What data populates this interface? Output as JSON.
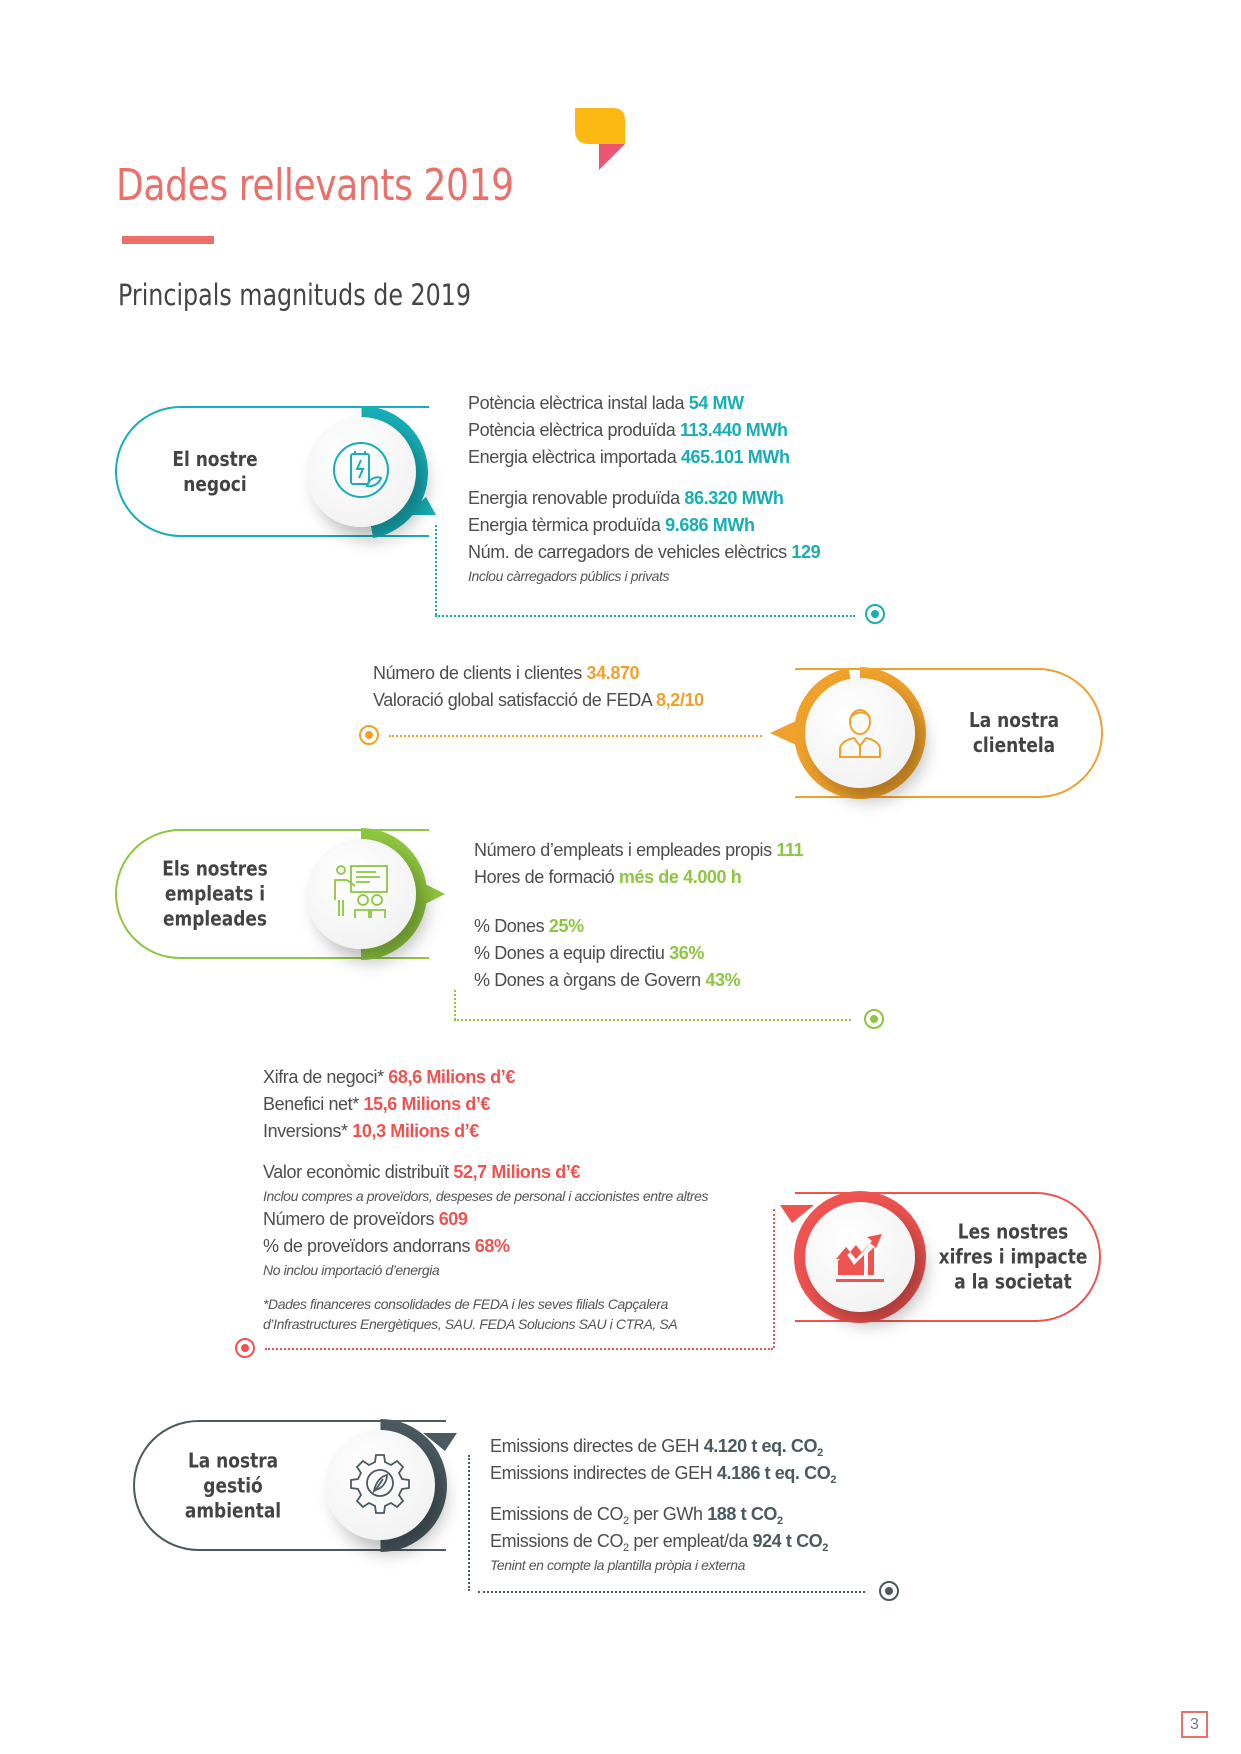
{
  "title": "Dades rellevants 2019",
  "subtitle": "Principals magnituds de 2019",
  "page_number": "3",
  "colors": {
    "title": "#e8716b",
    "negoci": "#17aeb6",
    "clientela": "#f0a12b",
    "empleats": "#8dc63f",
    "xifres": "#ee5350",
    "ambiental": "#4b5a61",
    "logo_yellow": "#fbb813",
    "logo_pink": "#ec5670"
  },
  "sections": [
    {
      "id": "negoci",
      "label": "El nostre\nnegoci",
      "icon": "battery-leaf-icon",
      "lines": [
        {
          "text": "Potència elèctrica instal lada ",
          "value": "54 MW"
        },
        {
          "text": "Potència elèctrica produïda ",
          "value": "113.440 MWh"
        },
        {
          "text": "Energia elèctrica importada ",
          "value": "465.101 MWh"
        },
        {
          "text": "Energia renovable produïda ",
          "value": "86.320 MWh",
          "gap": true
        },
        {
          "text": "Energia tèrmica produïda ",
          "value": "9.686 MWh"
        },
        {
          "text": "Núm. de carregadors de vehicles elèctrics ",
          "value": "129"
        },
        {
          "note": "Inclou càrregadors públics i privats"
        }
      ]
    },
    {
      "id": "clientela",
      "label": "La nostra\nclientela",
      "icon": "person-icon",
      "lines": [
        {
          "text": "Número de clients i clientes ",
          "value": "34.870"
        },
        {
          "text": "Valoració global satisfacció de FEDA ",
          "value": "8,2/10"
        }
      ]
    },
    {
      "id": "empleats",
      "label": "Els nostres\nempleats i\nempleades",
      "icon": "training-presentation-icon",
      "lines": [
        {
          "text": "Número d’empleats i empleades propis ",
          "value": "111"
        },
        {
          "text": "Hores de formació ",
          "value": "més de 4.000 h"
        },
        {
          "text": "% Dones ",
          "value": "25%",
          "gap": true,
          "big": true
        },
        {
          "text": "% Dones a equip directiu ",
          "value": "36%"
        },
        {
          "text": "% Dones a òrgans de Govern ",
          "value": "43%"
        }
      ]
    },
    {
      "id": "xifres",
      "label": "Les nostres\nxifres i impacte\na la societat",
      "icon": "growth-chart-icon",
      "lines": [
        {
          "text": "Xifra de negoci* ",
          "value": "68,6 Milions d’€"
        },
        {
          "text": "Benefici net* ",
          "value": "15,6 Milions d’€"
        },
        {
          "text": "Inversions* ",
          "value": "10,3 Milions d’€"
        },
        {
          "text": "Valor econòmic distribuït ",
          "value": "52,7 Milions d’€",
          "gap": true
        },
        {
          "note": "Inclou compres a proveïdors, despeses de personal i accionistes entre altres"
        },
        {
          "text": "Número de proveïdors ",
          "value": "609"
        },
        {
          "text": "% de proveïdors andorrans ",
          "value": "68%"
        },
        {
          "note": "No inclou importació d’energia"
        },
        {
          "note": "*Dades financeres consolidades de FEDA i les seves filials Capçalera",
          "gap": true
        },
        {
          "note": "d’Infrastructures Energètiques, SAU. FEDA Solucions SAU i CTRA, SA"
        }
      ]
    },
    {
      "id": "ambiental",
      "label": "La nostra\ngestió\nambiental",
      "icon": "gear-leaf-icon",
      "lines": [
        {
          "text": "Emissions directes de GEH  ",
          "value": "4.120 t eq. CO",
          "value_sub": "2"
        },
        {
          "text": "Emissions indirectes de GEH  ",
          "value": "4.186 t eq. CO",
          "value_sub": "2"
        },
        {
          "text": "Emissions de CO",
          "text_sub": "2",
          "text2": " per GWh ",
          "value": "188 t CO",
          "value_sub": "2",
          "gap": true
        },
        {
          "text": "Emissions de CO",
          "text_sub": "2",
          "text2": " per empleat/da ",
          "value": "924 t CO",
          "value_sub": "2"
        },
        {
          "note": "Tenint en compte la plantilla pròpia i externa"
        }
      ]
    }
  ]
}
